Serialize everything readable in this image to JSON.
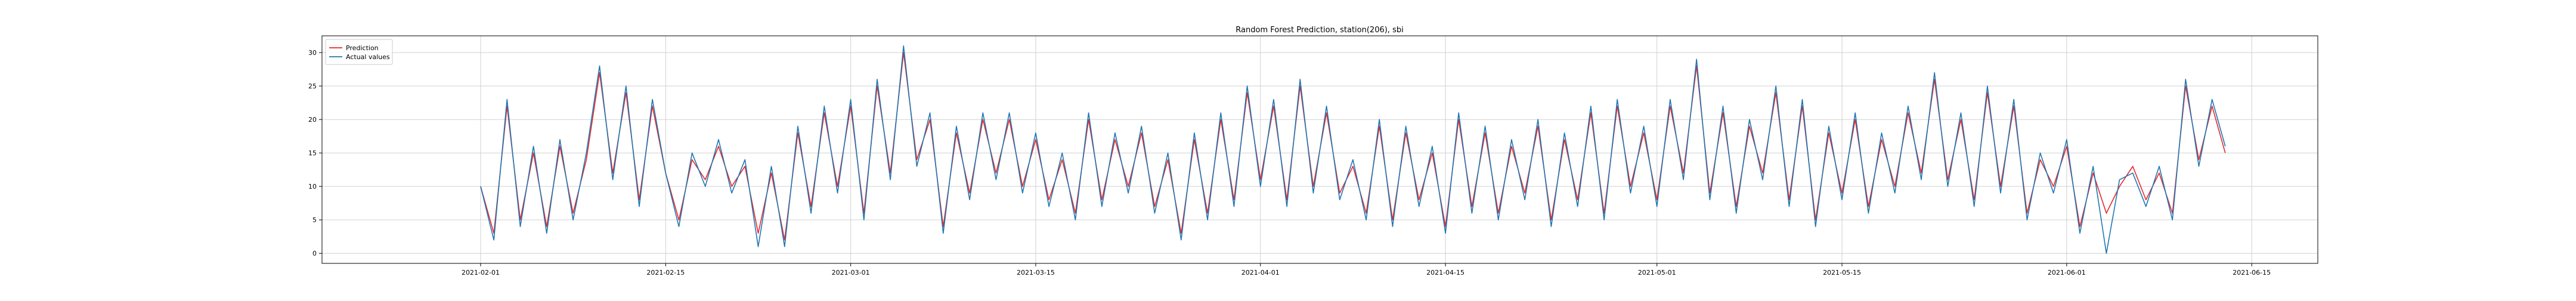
{
  "chart_data": {
    "type": "line",
    "title": "Random Forest Prediction, station(206), sbi",
    "xlabel": "",
    "ylabel": "",
    "x_range": [
      "2021-01-20",
      "2021-06-20"
    ],
    "x_ticks": [
      "2021-02-01",
      "2021-02-15",
      "2021-03-01",
      "2021-03-15",
      "2021-04-01",
      "2021-04-15",
      "2021-05-01",
      "2021-05-15",
      "2021-06-01",
      "2021-06-15"
    ],
    "ylim": [
      -1.5,
      32.5
    ],
    "y_ticks": [
      0,
      5,
      10,
      15,
      20,
      25,
      30
    ],
    "grid": true,
    "legend_position": "top-left",
    "series": [
      {
        "name": "Prediction",
        "color": "#e8262a",
        "points": [
          [
            "2021-02-01",
            10
          ],
          [
            "2021-02-02",
            3
          ],
          [
            "2021-02-03",
            22
          ],
          [
            "2021-02-04",
            5
          ],
          [
            "2021-02-05",
            15
          ],
          [
            "2021-02-06",
            4
          ],
          [
            "2021-02-07",
            16
          ],
          [
            "2021-02-08",
            6
          ],
          [
            "2021-02-09",
            14
          ],
          [
            "2021-02-10",
            27
          ],
          [
            "2021-02-11",
            12
          ],
          [
            "2021-02-12",
            24
          ],
          [
            "2021-02-13",
            8
          ],
          [
            "2021-02-14",
            22
          ],
          [
            "2021-02-15",
            12
          ],
          [
            "2021-02-16",
            5
          ],
          [
            "2021-02-17",
            14
          ],
          [
            "2021-02-18",
            11
          ],
          [
            "2021-02-19",
            16
          ],
          [
            "2021-02-20",
            10
          ],
          [
            "2021-02-21",
            13
          ],
          [
            "2021-02-22",
            3
          ],
          [
            "2021-02-23",
            12
          ],
          [
            "2021-02-24",
            2
          ],
          [
            "2021-02-25",
            18
          ],
          [
            "2021-02-26",
            7
          ],
          [
            "2021-02-27",
            21
          ],
          [
            "2021-02-28",
            10
          ],
          [
            "2021-03-01",
            22
          ],
          [
            "2021-03-02",
            6
          ],
          [
            "2021-03-03",
            25
          ],
          [
            "2021-03-04",
            12
          ],
          [
            "2021-03-05",
            30
          ],
          [
            "2021-03-06",
            14
          ],
          [
            "2021-03-07",
            20
          ],
          [
            "2021-03-08",
            4
          ],
          [
            "2021-03-09",
            18
          ],
          [
            "2021-03-10",
            9
          ],
          [
            "2021-03-11",
            20
          ],
          [
            "2021-03-12",
            12
          ],
          [
            "2021-03-13",
            20
          ],
          [
            "2021-03-14",
            10
          ],
          [
            "2021-03-15",
            17
          ],
          [
            "2021-03-16",
            8
          ],
          [
            "2021-03-17",
            14
          ],
          [
            "2021-03-18",
            6
          ],
          [
            "2021-03-19",
            20
          ],
          [
            "2021-03-20",
            8
          ],
          [
            "2021-03-21",
            17
          ],
          [
            "2021-03-22",
            10
          ],
          [
            "2021-03-23",
            18
          ],
          [
            "2021-03-24",
            7
          ],
          [
            "2021-03-25",
            14
          ],
          [
            "2021-03-26",
            3
          ],
          [
            "2021-03-27",
            17
          ],
          [
            "2021-03-28",
            6
          ],
          [
            "2021-03-29",
            20
          ],
          [
            "2021-03-30",
            8
          ],
          [
            "2021-03-31",
            24
          ],
          [
            "2021-04-01",
            11
          ],
          [
            "2021-04-02",
            22
          ],
          [
            "2021-04-03",
            8
          ],
          [
            "2021-04-04",
            25
          ],
          [
            "2021-04-05",
            10
          ],
          [
            "2021-04-06",
            21
          ],
          [
            "2021-04-07",
            9
          ],
          [
            "2021-04-08",
            13
          ],
          [
            "2021-04-09",
            6
          ],
          [
            "2021-04-10",
            19
          ],
          [
            "2021-04-11",
            5
          ],
          [
            "2021-04-12",
            18
          ],
          [
            "2021-04-13",
            8
          ],
          [
            "2021-04-14",
            15
          ],
          [
            "2021-04-15",
            4
          ],
          [
            "2021-04-16",
            20
          ],
          [
            "2021-04-17",
            7
          ],
          [
            "2021-04-18",
            18
          ],
          [
            "2021-04-19",
            6
          ],
          [
            "2021-04-20",
            16
          ],
          [
            "2021-04-21",
            9
          ],
          [
            "2021-04-22",
            19
          ],
          [
            "2021-04-23",
            5
          ],
          [
            "2021-04-24",
            17
          ],
          [
            "2021-04-25",
            8
          ],
          [
            "2021-04-26",
            21
          ],
          [
            "2021-04-27",
            6
          ],
          [
            "2021-04-28",
            22
          ],
          [
            "2021-04-29",
            10
          ],
          [
            "2021-04-30",
            18
          ],
          [
            "2021-05-01",
            8
          ],
          [
            "2021-05-02",
            22
          ],
          [
            "2021-05-03",
            12
          ],
          [
            "2021-05-04",
            28
          ],
          [
            "2021-05-05",
            9
          ],
          [
            "2021-05-06",
            21
          ],
          [
            "2021-05-07",
            7
          ],
          [
            "2021-05-08",
            19
          ],
          [
            "2021-05-09",
            12
          ],
          [
            "2021-05-10",
            24
          ],
          [
            "2021-05-11",
            8
          ],
          [
            "2021-05-12",
            22
          ],
          [
            "2021-05-13",
            5
          ],
          [
            "2021-05-14",
            18
          ],
          [
            "2021-05-15",
            9
          ],
          [
            "2021-05-16",
            20
          ],
          [
            "2021-05-17",
            7
          ],
          [
            "2021-05-18",
            17
          ],
          [
            "2021-05-19",
            10
          ],
          [
            "2021-05-20",
            21
          ],
          [
            "2021-05-21",
            12
          ],
          [
            "2021-05-22",
            26
          ],
          [
            "2021-05-23",
            11
          ],
          [
            "2021-05-24",
            20
          ],
          [
            "2021-05-25",
            8
          ],
          [
            "2021-05-26",
            24
          ],
          [
            "2021-05-27",
            10
          ],
          [
            "2021-05-28",
            22
          ],
          [
            "2021-05-29",
            6
          ],
          [
            "2021-05-30",
            14
          ],
          [
            "2021-05-31",
            10
          ],
          [
            "2021-06-01",
            16
          ],
          [
            "2021-06-02",
            4
          ],
          [
            "2021-06-03",
            12
          ],
          [
            "2021-06-04",
            6
          ],
          [
            "2021-06-05",
            10
          ],
          [
            "2021-06-06",
            13
          ],
          [
            "2021-06-07",
            8
          ],
          [
            "2021-06-08",
            12
          ],
          [
            "2021-06-09",
            6
          ],
          [
            "2021-06-10",
            25
          ],
          [
            "2021-06-11",
            14
          ],
          [
            "2021-06-12",
            22
          ],
          [
            "2021-06-13",
            15
          ]
        ]
      },
      {
        "name": "Actual values",
        "color": "#1f77b4",
        "points": [
          [
            "2021-02-01",
            10
          ],
          [
            "2021-02-02",
            2
          ],
          [
            "2021-02-03",
            23
          ],
          [
            "2021-02-04",
            4
          ],
          [
            "2021-02-05",
            16
          ],
          [
            "2021-02-06",
            3
          ],
          [
            "2021-02-07",
            17
          ],
          [
            "2021-02-08",
            5
          ],
          [
            "2021-02-09",
            15
          ],
          [
            "2021-02-10",
            28
          ],
          [
            "2021-02-11",
            11
          ],
          [
            "2021-02-12",
            25
          ],
          [
            "2021-02-13",
            7
          ],
          [
            "2021-02-14",
            23
          ],
          [
            "2021-02-15",
            12
          ],
          [
            "2021-02-16",
            4
          ],
          [
            "2021-02-17",
            15
          ],
          [
            "2021-02-18",
            10
          ],
          [
            "2021-02-19",
            17
          ],
          [
            "2021-02-20",
            9
          ],
          [
            "2021-02-21",
            14
          ],
          [
            "2021-02-22",
            1
          ],
          [
            "2021-02-23",
            13
          ],
          [
            "2021-02-24",
            1
          ],
          [
            "2021-02-25",
            19
          ],
          [
            "2021-02-26",
            6
          ],
          [
            "2021-02-27",
            22
          ],
          [
            "2021-02-28",
            9
          ],
          [
            "2021-03-01",
            23
          ],
          [
            "2021-03-02",
            5
          ],
          [
            "2021-03-03",
            26
          ],
          [
            "2021-03-04",
            11
          ],
          [
            "2021-03-05",
            31
          ],
          [
            "2021-03-06",
            13
          ],
          [
            "2021-03-07",
            21
          ],
          [
            "2021-03-08",
            3
          ],
          [
            "2021-03-09",
            19
          ],
          [
            "2021-03-10",
            8
          ],
          [
            "2021-03-11",
            21
          ],
          [
            "2021-03-12",
            11
          ],
          [
            "2021-03-13",
            21
          ],
          [
            "2021-03-14",
            9
          ],
          [
            "2021-03-15",
            18
          ],
          [
            "2021-03-16",
            7
          ],
          [
            "2021-03-17",
            15
          ],
          [
            "2021-03-18",
            5
          ],
          [
            "2021-03-19",
            21
          ],
          [
            "2021-03-20",
            7
          ],
          [
            "2021-03-21",
            18
          ],
          [
            "2021-03-22",
            9
          ],
          [
            "2021-03-23",
            19
          ],
          [
            "2021-03-24",
            6
          ],
          [
            "2021-03-25",
            15
          ],
          [
            "2021-03-26",
            2
          ],
          [
            "2021-03-27",
            18
          ],
          [
            "2021-03-28",
            5
          ],
          [
            "2021-03-29",
            21
          ],
          [
            "2021-03-30",
            7
          ],
          [
            "2021-03-31",
            25
          ],
          [
            "2021-04-01",
            10
          ],
          [
            "2021-04-02",
            23
          ],
          [
            "2021-04-03",
            7
          ],
          [
            "2021-04-04",
            26
          ],
          [
            "2021-04-05",
            9
          ],
          [
            "2021-04-06",
            22
          ],
          [
            "2021-04-07",
            8
          ],
          [
            "2021-04-08",
            14
          ],
          [
            "2021-04-09",
            5
          ],
          [
            "2021-04-10",
            20
          ],
          [
            "2021-04-11",
            4
          ],
          [
            "2021-04-12",
            19
          ],
          [
            "2021-04-13",
            7
          ],
          [
            "2021-04-14",
            16
          ],
          [
            "2021-04-15",
            3
          ],
          [
            "2021-04-16",
            21
          ],
          [
            "2021-04-17",
            6
          ],
          [
            "2021-04-18",
            19
          ],
          [
            "2021-04-19",
            5
          ],
          [
            "2021-04-20",
            17
          ],
          [
            "2021-04-21",
            8
          ],
          [
            "2021-04-22",
            20
          ],
          [
            "2021-04-23",
            4
          ],
          [
            "2021-04-24",
            18
          ],
          [
            "2021-04-25",
            7
          ],
          [
            "2021-04-26",
            22
          ],
          [
            "2021-04-27",
            5
          ],
          [
            "2021-04-28",
            23
          ],
          [
            "2021-04-29",
            9
          ],
          [
            "2021-04-30",
            19
          ],
          [
            "2021-05-01",
            7
          ],
          [
            "2021-05-02",
            23
          ],
          [
            "2021-05-03",
            11
          ],
          [
            "2021-05-04",
            29
          ],
          [
            "2021-05-05",
            8
          ],
          [
            "2021-05-06",
            22
          ],
          [
            "2021-05-07",
            6
          ],
          [
            "2021-05-08",
            20
          ],
          [
            "2021-05-09",
            11
          ],
          [
            "2021-05-10",
            25
          ],
          [
            "2021-05-11",
            7
          ],
          [
            "2021-05-12",
            23
          ],
          [
            "2021-05-13",
            4
          ],
          [
            "2021-05-14",
            19
          ],
          [
            "2021-05-15",
            8
          ],
          [
            "2021-05-16",
            21
          ],
          [
            "2021-05-17",
            6
          ],
          [
            "2021-05-18",
            18
          ],
          [
            "2021-05-19",
            9
          ],
          [
            "2021-05-20",
            22
          ],
          [
            "2021-05-21",
            11
          ],
          [
            "2021-05-22",
            27
          ],
          [
            "2021-05-23",
            10
          ],
          [
            "2021-05-24",
            21
          ],
          [
            "2021-05-25",
            7
          ],
          [
            "2021-05-26",
            25
          ],
          [
            "2021-05-27",
            9
          ],
          [
            "2021-05-28",
            23
          ],
          [
            "2021-05-29",
            5
          ],
          [
            "2021-05-30",
            15
          ],
          [
            "2021-05-31",
            9
          ],
          [
            "2021-06-01",
            17
          ],
          [
            "2021-06-02",
            3
          ],
          [
            "2021-06-03",
            13
          ],
          [
            "2021-06-04",
            0
          ],
          [
            "2021-06-05",
            11
          ],
          [
            "2021-06-06",
            12
          ],
          [
            "2021-06-07",
            7
          ],
          [
            "2021-06-08",
            13
          ],
          [
            "2021-06-09",
            5
          ],
          [
            "2021-06-10",
            26
          ],
          [
            "2021-06-11",
            13
          ],
          [
            "2021-06-12",
            23
          ],
          [
            "2021-06-13",
            16
          ]
        ]
      }
    ]
  }
}
